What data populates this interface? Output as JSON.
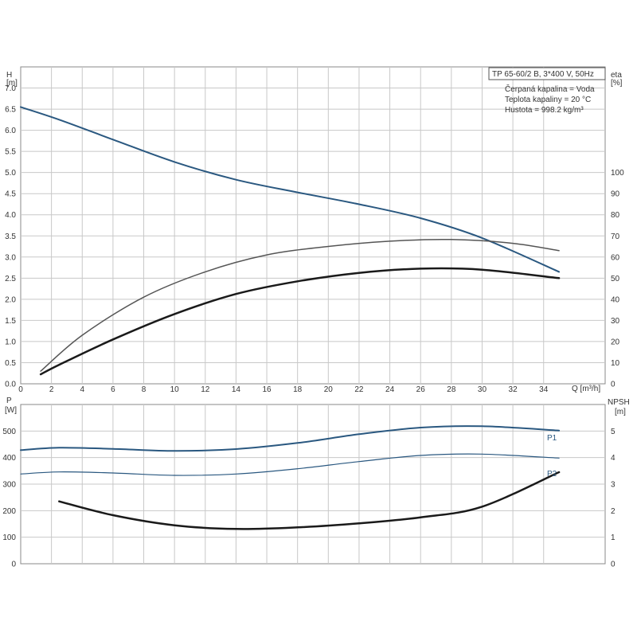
{
  "title": "TP 65-60/2 B, 3*400 V, 50Hz",
  "conditions": [
    "Čerpaná kapalina = Voda",
    "Teplota kapaliny = 20 °C",
    "Hustota = 998.2 kg/m³"
  ],
  "colors": {
    "blue": "#2a5880",
    "dark": "#1a1a1a",
    "grey": "#555555",
    "grid": "#c8c8c8"
  },
  "chart_data": [
    {
      "type": "line",
      "xlabel": "Q [m³/h]",
      "xlim": [
        0,
        38
      ],
      "x_ticks": [
        0,
        2,
        4,
        6,
        8,
        10,
        12,
        14,
        16,
        18,
        20,
        22,
        24,
        26,
        28,
        30,
        32,
        34
      ],
      "ylabel_left": "H [m]",
      "ylabel_left_name": "H",
      "ylabel_left_unit": "[m]",
      "ylim_left": [
        0,
        7.5
      ],
      "y_ticks_left": [
        "0.0",
        "0.5",
        "1.0",
        "1.5",
        "2.0",
        "2.5",
        "3.0",
        "3.5",
        "4.0",
        "4.5",
        "5.0",
        "5.5",
        "6.0",
        "6.5",
        "7.0"
      ],
      "ylabel_right": "eta [%]",
      "ylabel_right_name": "eta",
      "ylabel_right_unit": "[%]",
      "ylim_right": [
        0,
        150
      ],
      "y_ticks_right": [
        0,
        10,
        20,
        30,
        40,
        50,
        60,
        70,
        80,
        90,
        100
      ],
      "grid": true,
      "series": [
        {
          "axis": "left",
          "color": "#2a5880",
          "width": 2,
          "x": [
            0,
            2.5,
            6,
            10,
            14,
            18,
            22,
            26,
            30,
            35
          ],
          "y": [
            6.55,
            6.25,
            5.78,
            5.25,
            4.83,
            4.53,
            4.25,
            3.92,
            3.45,
            2.65
          ]
        },
        {
          "axis": "right",
          "color": "#555555",
          "width": 1.5,
          "x": [
            1.3,
            4,
            8,
            12,
            16,
            20,
            24,
            28,
            32,
            35
          ],
          "y": [
            6,
            23,
            41,
            53,
            61,
            65,
            67.5,
            68.3,
            66.5,
            63
          ]
        },
        {
          "axis": "right",
          "color": "#1a1a1a",
          "width": 2.5,
          "x": [
            1.3,
            2.5,
            6,
            10,
            14,
            18,
            22,
            26,
            30,
            35
          ],
          "y": [
            4.5,
            9,
            21,
            33,
            42.5,
            48.5,
            52.5,
            54.5,
            54,
            50
          ]
        }
      ]
    },
    {
      "type": "line",
      "xlim": [
        0,
        38
      ],
      "ylabel_left": "P [W]",
      "ylabel_left_name": "P",
      "ylabel_left_unit": "[W]",
      "ylim_left": [
        0,
        600
      ],
      "y_ticks_left": [
        0,
        100,
        200,
        300,
        400,
        500
      ],
      "ylabel_right": "NPSH [m]",
      "ylabel_right_name": "NPSH",
      "ylabel_right_unit": "[m]",
      "ylim_right": [
        0,
        6
      ],
      "y_ticks_right": [
        0,
        1,
        2,
        3,
        4,
        5
      ],
      "grid": true,
      "series": [
        {
          "name": "P1",
          "axis": "left",
          "color": "#2a5880",
          "width": 2,
          "x": [
            0,
            2.5,
            6,
            10,
            14,
            18,
            22,
            26,
            30,
            35
          ],
          "y": [
            428,
            437,
            433,
            425,
            432,
            455,
            488,
            513,
            518,
            502
          ]
        },
        {
          "name": "P2",
          "axis": "left",
          "color": "#2a5880",
          "width": 1.2,
          "x": [
            0,
            2.5,
            6,
            10,
            14,
            18,
            22,
            26,
            30,
            35
          ],
          "y": [
            338,
            346,
            342,
            333,
            338,
            358,
            385,
            408,
            413,
            398
          ]
        },
        {
          "axis": "right",
          "color": "#1a1a1a",
          "width": 2.5,
          "x": [
            2.5,
            6,
            10,
            14,
            18,
            22,
            26,
            30,
            35
          ],
          "y": [
            2.35,
            1.83,
            1.45,
            1.31,
            1.37,
            1.52,
            1.75,
            2.15,
            3.45
          ]
        }
      ]
    }
  ]
}
